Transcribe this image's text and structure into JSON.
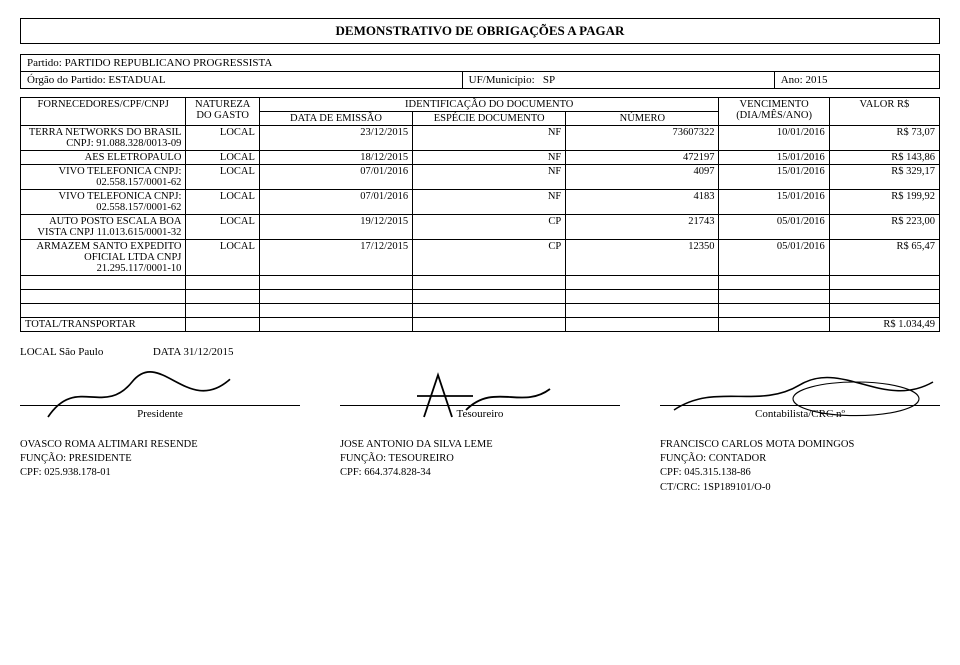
{
  "title": "DEMONSTRATIVO DE OBRIGAÇÕES A PAGAR",
  "meta": {
    "partido_label": "Partido:",
    "partido": "PARTIDO REPUBLICANO PROGRESSISTA",
    "orgao_label": "Órgão do Partido:",
    "orgao": "ESTADUAL",
    "uf_label": "UF/Município:",
    "uf": "SP",
    "ano_label": "Ano:",
    "ano": "2015"
  },
  "headers": {
    "fornecedor": "FORNECEDORES/CPF/CNPJ",
    "natureza": "NATUREZA DO GASTO",
    "ident": "IDENTIFICAÇÃO DO DOCUMENTO",
    "data_emissao": "DATA DE EMISSÃO",
    "especie": "ESPÉCIE DOCUMENTO",
    "numero": "NÚMERO",
    "vencimento": "VENCIMENTO (DIA/MÊS/ANO)",
    "valor": "VALOR R$"
  },
  "rows": [
    {
      "forn": "TERRA NETWORKS DO BRASIL CNPJ: 91.088.328/0013-09",
      "nat": "LOCAL",
      "data": "23/12/2015",
      "esp": "NF",
      "num": "73607322",
      "venc": "10/01/2016",
      "val": "R$ 73,07"
    },
    {
      "forn": "AES ELETROPAULO",
      "nat": "LOCAL",
      "data": "18/12/2015",
      "esp": "NF",
      "num": "472197",
      "venc": "15/01/2016",
      "val": "R$ 143,86"
    },
    {
      "forn": "VIVO TELEFONICA CNPJ: 02.558.157/0001-62",
      "nat": "LOCAL",
      "data": "07/01/2016",
      "esp": "NF",
      "num": "4097",
      "venc": "15/01/2016",
      "val": "R$ 329,17"
    },
    {
      "forn": "VIVO TELEFONICA CNPJ: 02.558.157/0001-62",
      "nat": "LOCAL",
      "data": "07/01/2016",
      "esp": "NF",
      "num": "4183",
      "venc": "15/01/2016",
      "val": "R$ 199,92"
    },
    {
      "forn": "AUTO POSTO ESCALA BOA VISTA CNPJ 11.013.615/0001-32",
      "nat": "LOCAL",
      "data": "19/12/2015",
      "esp": "CP",
      "num": "21743",
      "venc": "05/01/2016",
      "val": "R$ 223,00"
    },
    {
      "forn": "ARMAZEM SANTO EXPEDITO OFICIAL LTDA CNPJ 21.295.117/0001-10",
      "nat": "LOCAL",
      "data": "17/12/2015",
      "esp": "CP",
      "num": "12350",
      "venc": "05/01/2016",
      "val": "R$ 65,47"
    }
  ],
  "empty_rows": 3,
  "total": {
    "label": "TOTAL/TRANSPORTAR",
    "value": "R$ 1.034,49"
  },
  "signatures": {
    "local_label": "LOCAL",
    "local": "São Paulo",
    "data_label": "DATA",
    "data": "31/12/2015",
    "roles": {
      "pres": "Presidente",
      "tes": "Tesoureiro",
      "cont": "Contabilista/CRC nº"
    }
  },
  "signers": {
    "pres": {
      "name": "OVASCO ROMA ALTIMARI RESENDE",
      "func": "FUNÇÃO: PRESIDENTE",
      "cpf": "CPF: 025.938.178-01"
    },
    "tes": {
      "name": "JOSE ANTONIO DA SILVA LEME",
      "func": "FUNÇÃO: TESOUREIRO",
      "cpf": "CPF: 664.374.828-34"
    },
    "cont": {
      "name": "FRANCISCO CARLOS MOTA DOMINGOS",
      "func": "FUNÇÃO: CONTADOR",
      "cpf": "CPF: 045.315.138-86",
      "crc": "CT/CRC: 1SP189101/O-0"
    }
  },
  "style": {
    "background": "#ffffff",
    "border": "#000000",
    "font_body_pt": 11,
    "font_title_pt": 13,
    "font_table_pt": 10.5
  }
}
